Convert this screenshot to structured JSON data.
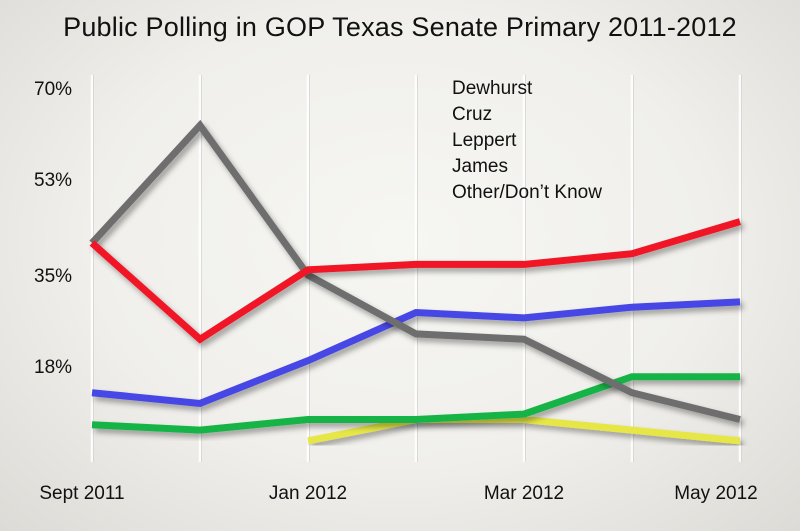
{
  "chart_data": {
    "type": "line",
    "title": "Public Polling in GOP Texas Senate Primary 2011-2012",
    "xlabel": "",
    "ylabel": "",
    "x_tick_labels": [
      "Sept 2011",
      "Jan 2012",
      "Mar 2012",
      "May 2012"
    ],
    "y_tick_labels": [
      "70%",
      "53%",
      "35%",
      "18%"
    ],
    "y_ticks": [
      70,
      53,
      35,
      18
    ],
    "ylim": [
      0,
      70
    ],
    "x_points": 7,
    "series": [
      {
        "name": "Dewhurst",
        "color": "#f01428",
        "values": [
          41,
          23,
          36,
          37,
          37,
          39,
          45
        ]
      },
      {
        "name": "Cruz",
        "color": "#4646e6",
        "values": [
          13,
          11,
          19,
          28,
          27,
          29,
          30
        ]
      },
      {
        "name": "Leppert",
        "color": "#14b446",
        "values": [
          7,
          6,
          8,
          8,
          9,
          16,
          16
        ]
      },
      {
        "name": "James",
        "color": "#e6e646",
        "values": [
          null,
          null,
          4,
          8,
          8,
          6,
          4
        ]
      },
      {
        "name": "Other/Don’t Know",
        "color": "#6e6e6e",
        "values": [
          41,
          63,
          35,
          24,
          23,
          13,
          8
        ]
      }
    ],
    "legend_position": "top-right",
    "grid": "vertical"
  }
}
